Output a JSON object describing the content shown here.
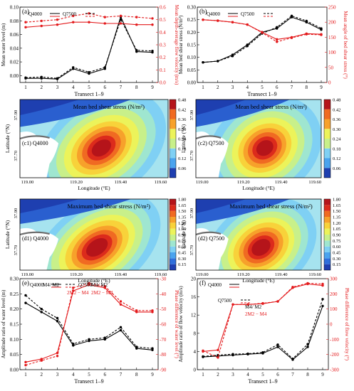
{
  "chart_data": [
    {
      "panel": "(a)",
      "type": "line",
      "xlabel": "Transect 1–9",
      "ylabel": "Mean water level (m)",
      "y2label": "Mean depth-average flow velocity (m/s)",
      "x": [
        1,
        2,
        3,
        4,
        5,
        6,
        7,
        8,
        9
      ],
      "xticks": [
        "1",
        "2",
        "3",
        "4",
        "5",
        "6",
        "7",
        "8",
        "9"
      ],
      "ylim": [
        -0.01,
        0.1
      ],
      "yticks": [
        "0.00",
        "0.02",
        "0.04",
        "0.06",
        "0.08",
        "0.10"
      ],
      "y2lim": [
        0,
        0.6
      ],
      "y2ticks": [
        "0.0",
        "0.1",
        "0.2",
        "0.3",
        "0.4",
        "0.5",
        "0.6"
      ],
      "legend": [
        "Q4000",
        "Q7500"
      ],
      "series": [
        {
          "name": "Q4000",
          "axis": "left",
          "color": "#000000",
          "dash": false,
          "values": [
            -0.004,
            -0.004,
            -0.005,
            0.01,
            0.003,
            0.01,
            0.086,
            0.035,
            0.034
          ]
        },
        {
          "name": "Q7500",
          "axis": "left",
          "color": "#000000",
          "dash": true,
          "values": [
            -0.003,
            -0.002,
            -0.004,
            0.012,
            0.005,
            0.012,
            0.082,
            0.037,
            0.036
          ]
        },
        {
          "name": "Q4000",
          "axis": "right",
          "color": "#e31a1c",
          "dash": false,
          "values": [
            0.44,
            0.45,
            0.46,
            0.48,
            0.48,
            0.47,
            0.47,
            0.46,
            0.46
          ]
        },
        {
          "name": "Q7500",
          "axis": "right",
          "color": "#e31a1c",
          "dash": true,
          "values": [
            0.48,
            0.49,
            0.5,
            0.53,
            0.55,
            0.52,
            0.53,
            0.52,
            0.51
          ]
        }
      ]
    },
    {
      "panel": "(b)",
      "type": "line",
      "xlabel": "Transect 1–9",
      "ylabel": "Mean bed shear stress (N/m²)",
      "y2label": "Mean angle of bed shear stress (°)",
      "x": [
        1,
        2,
        3,
        4,
        5,
        6,
        7,
        8,
        9
      ],
      "xticks": [
        "1",
        "2",
        "3",
        "4",
        "5",
        "6",
        "7",
        "8",
        "9"
      ],
      "ylim": [
        0,
        0.3
      ],
      "yticks": [
        "0.00",
        "0.05",
        "0.10",
        "0.15",
        "0.20",
        "0.25",
        "0.30"
      ],
      "y2lim": [
        0,
        250
      ],
      "y2ticks": [
        "0",
        "50",
        "100",
        "150",
        "200",
        "250"
      ],
      "legend": [
        "Q4000",
        "Q7500"
      ],
      "series": [
        {
          "name": "Q4000",
          "axis": "left",
          "color": "#000000",
          "dash": false,
          "values": [
            0.08,
            0.085,
            0.11,
            0.15,
            0.2,
            0.215,
            0.26,
            0.24,
            0.21
          ]
        },
        {
          "name": "Q7500",
          "axis": "left",
          "color": "#000000",
          "dash": true,
          "values": [
            0.08,
            0.085,
            0.105,
            0.145,
            0.195,
            0.22,
            0.265,
            0.245,
            0.215
          ]
        },
        {
          "name": "Q4000",
          "axis": "right",
          "color": "#e31a1c",
          "dash": false,
          "values": [
            208,
            205,
            200,
            192,
            167,
            143,
            150,
            162,
            160
          ]
        },
        {
          "name": "Q7500",
          "axis": "right",
          "color": "#e31a1c",
          "dash": true,
          "values": [
            208,
            205,
            200,
            192,
            165,
            135,
            148,
            160,
            158
          ]
        }
      ]
    },
    {
      "panel": "(c1)",
      "type": "heatmap",
      "label": "Q4000",
      "title": "Mean bed shear stress (N/m²)",
      "xlabel": "Longitude (°E)",
      "ylabel": "Latitude (°N)",
      "xticks": [
        "119.00",
        "119.20",
        "119.40",
        "119.60"
      ],
      "yticks": [
        "37.90",
        "37.70"
      ],
      "colorbar": [
        "0.06",
        "0.12",
        "0.18",
        "0.24",
        "0.30",
        "0.36",
        "0.42",
        "0.48"
      ]
    },
    {
      "panel": "(c2)",
      "type": "heatmap",
      "label": "Q7500",
      "title": "Mean bed shear stress (N/m²)",
      "xlabel": "Longitude (°E)",
      "ylabel": "Latitude (°N)",
      "xticks": [
        "119.00",
        "119.20",
        "119.40",
        "119.60"
      ],
      "yticks": [
        "37.90",
        "37.70"
      ],
      "colorbar": [
        "0.06",
        "0.12",
        "0.18",
        "0.24",
        "0.30",
        "0.36",
        "0.42",
        "0.48"
      ]
    },
    {
      "panel": "(d1)",
      "type": "heatmap",
      "label": "Q4000",
      "title": "Maximum bed shear stress (N/m²)",
      "xlabel": "Longitude (°E)",
      "ylabel": "Latitude (°N)",
      "xticks": [
        "119.00",
        "119.20",
        "119.40",
        "119.60"
      ],
      "yticks": [
        "37.90",
        "37.70"
      ],
      "colorbar": [
        "0.15",
        "0.30",
        "0.45",
        "0.60",
        "0.75",
        "0.90",
        "1.05",
        "1.20",
        "1.35",
        "1.50",
        "1.65",
        "1.80"
      ]
    },
    {
      "panel": "(d2)",
      "type": "heatmap",
      "label": "Q7500",
      "title": "Maximum bed shear stress (N/m²)",
      "xlabel": "Longitude (°E)",
      "ylabel": "Latitude (°N)",
      "xticks": [
        "119.00",
        "119.20",
        "119.40",
        "119.60"
      ],
      "yticks": [
        "37.90",
        "37.70"
      ],
      "colorbar": [
        "0.15",
        "0.30",
        "0.45",
        "0.60",
        "0.75",
        "0.90",
        "1.05",
        "1.20",
        "1.35",
        "1.50",
        "1.65",
        "1.80"
      ]
    },
    {
      "panel": "(e)",
      "type": "line",
      "xlabel": "Transect 1–9",
      "ylabel": "Amplitude ratio of water level (m)",
      "y2label": "Phase difference of water level (°)",
      "x": [
        1,
        2,
        3,
        4,
        5,
        6,
        7,
        8,
        9
      ],
      "xticks": [
        "1",
        "2",
        "3",
        "4",
        "5",
        "6",
        "7",
        "8",
        "9"
      ],
      "ylim": [
        0,
        0.3
      ],
      "yticks": [
        "0.00",
        "0.05",
        "0.10",
        "0.15",
        "0.20",
        "0.25",
        "0.30"
      ],
      "y2lim": [
        -90,
        -30
      ],
      "y2ticks": [
        "-90",
        "-80",
        "-70",
        "-60",
        "-50",
        "-40",
        "-30"
      ],
      "legend": [
        "Q4000",
        "M4/ M2",
        "Q7500",
        "M4/ M2",
        "2M2 − M4",
        "2M2 − M4"
      ],
      "series": [
        {
          "name": "Q4000 M4/ M2",
          "axis": "left",
          "color": "#000000",
          "dash": false,
          "values": [
            0.22,
            0.19,
            0.16,
            0.08,
            0.095,
            0.1,
            0.13,
            0.07,
            0.065
          ]
        },
        {
          "name": "Q7500 M4/ M2",
          "axis": "left",
          "color": "#000000",
          "dash": true,
          "values": [
            0.245,
            0.2,
            0.17,
            0.085,
            0.1,
            0.105,
            0.14,
            0.075,
            0.07
          ]
        },
        {
          "name": "Q4000 2M2 − M4",
          "axis": "right",
          "color": "#e31a1c",
          "dash": false,
          "values": [
            -85,
            -83,
            -79,
            -38,
            -34,
            -36,
            -47,
            -52,
            -52
          ]
        },
        {
          "name": "Q7500 2M2 − M4",
          "axis": "right",
          "color": "#e31a1c",
          "dash": true,
          "values": [
            -87,
            -84,
            -81,
            -36,
            -33,
            -35,
            -45,
            -51,
            -51
          ]
        }
      ]
    },
    {
      "panel": "(f)",
      "type": "line",
      "xlabel": "Transect 1–9",
      "ylabel": "Amplitude ratio of flow velocity (m/s)",
      "y2label": "Phase difference of flow velocity (°)",
      "x": [
        1,
        2,
        3,
        4,
        5,
        6,
        7,
        8,
        9
      ],
      "xticks": [
        "1",
        "2",
        "3",
        "4",
        "5",
        "6",
        "7",
        "8",
        "9"
      ],
      "ylim": [
        0,
        20
      ],
      "yticks": [
        "0",
        "4",
        "8",
        "12",
        "16",
        "20"
      ],
      "y2lim": [
        -300,
        300
      ],
      "y2ticks": [
        "-300",
        "-200",
        "-100",
        "0",
        "100",
        "200",
        "300"
      ],
      "legend": [
        "Q4000",
        "Q7500",
        "M4/ M2",
        "2M2 − M4"
      ],
      "series": [
        {
          "name": "Q4000 M4/ M2",
          "axis": "left",
          "color": "#000000",
          "dash": false,
          "values": [
            2.8,
            3.0,
            3.2,
            3.4,
            3.6,
            5.0,
            2.2,
            5.0,
            14.0
          ]
        },
        {
          "name": "Q7500 M4/ M2",
          "axis": "left",
          "color": "#000000",
          "dash": true,
          "values": [
            2.9,
            3.2,
            3.4,
            3.5,
            3.8,
            5.5,
            2.4,
            5.6,
            15.5
          ]
        },
        {
          "name": "Q4000 2M2 − M4",
          "axis": "right",
          "color": "#e31a1c",
          "dash": false,
          "values": [
            -180,
            -170,
            130,
            130,
            135,
            150,
            240,
            265,
            255
          ]
        },
        {
          "name": "Q7500 2M2 − M4",
          "axis": "right",
          "color": "#e31a1c",
          "dash": true,
          "values": [
            -175,
            -220,
            130,
            130,
            138,
            150,
            245,
            270,
            265
          ]
        }
      ]
    }
  ]
}
